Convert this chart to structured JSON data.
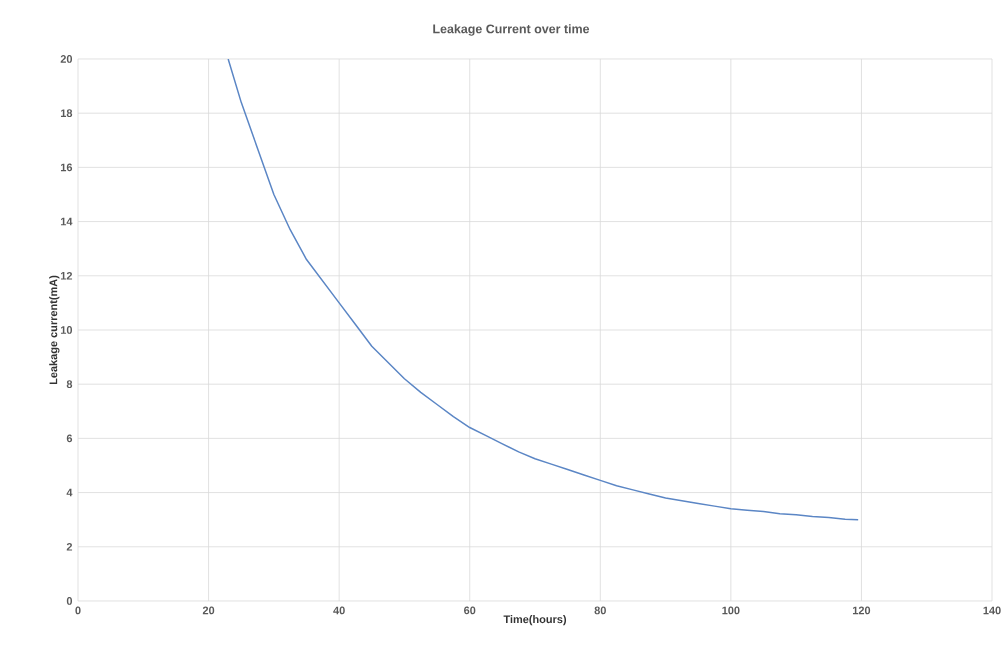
{
  "chart_data": {
    "type": "line",
    "title": "Leakage Current over time",
    "xlabel": "Time(hours)",
    "ylabel": "Leakage current(mA)",
    "x": [
      23.0,
      25,
      27.5,
      30,
      32.5,
      35,
      37.5,
      40,
      42.5,
      45,
      47.5,
      50,
      52.5,
      55,
      57.5,
      60,
      62.5,
      65,
      67.5,
      70,
      72.5,
      75,
      77.5,
      80,
      82.5,
      85,
      87.5,
      90,
      92.5,
      95,
      97.5,
      100,
      102.5,
      105,
      107.5,
      110,
      112.5,
      115,
      117.5,
      119.5
    ],
    "series": [
      {
        "color": "#5b86c5",
        "values": [
          20.0,
          18.4,
          16.7,
          15.0,
          13.7,
          12.6,
          11.8,
          11.0,
          10.2,
          9.4,
          8.8,
          8.2,
          7.7,
          7.25,
          6.8,
          6.4,
          6.1,
          5.8,
          5.5,
          5.25,
          5.05,
          4.85,
          4.65,
          4.45,
          4.25,
          4.1,
          3.95,
          3.8,
          3.7,
          3.6,
          3.5,
          3.4,
          3.35,
          3.3,
          3.22,
          3.18,
          3.12,
          3.08,
          3.02,
          3.0
        ]
      }
    ],
    "xlim": [
      0,
      140
    ],
    "ylim": [
      0,
      20
    ],
    "xticks": [
      0,
      20,
      40,
      60,
      80,
      100,
      120,
      140
    ],
    "yticks": [
      0,
      2,
      4,
      6,
      8,
      10,
      12,
      14,
      16,
      18,
      20
    ],
    "grid": true,
    "marker": "none",
    "line_style": "solid"
  }
}
